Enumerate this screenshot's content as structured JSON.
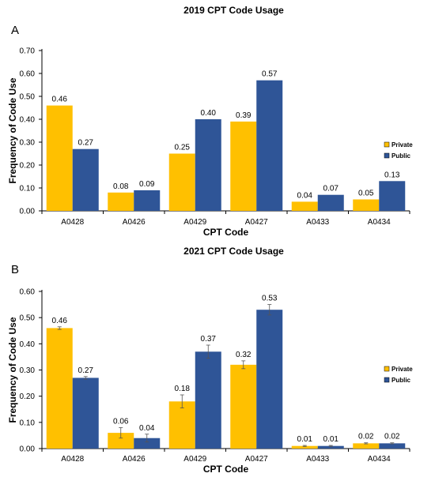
{
  "chart_data": [
    {
      "panel": "A",
      "type": "bar",
      "title": "2019 CPT Code Usage",
      "xlabel": "CPT Code",
      "ylabel": "Frequency of Code Use",
      "categories": [
        "A0428",
        "A0426",
        "A0429",
        "A0427",
        "A0433",
        "A0434"
      ],
      "series": [
        {
          "name": "Private",
          "color": "#FFC000",
          "values": [
            0.46,
            0.08,
            0.25,
            0.39,
            0.04,
            0.05
          ],
          "labels": [
            "0.46",
            "0.08",
            "0.25",
            "0.39",
            "0.04",
            "0.05"
          ]
        },
        {
          "name": "Public",
          "color": "#2F5597",
          "values": [
            0.27,
            0.09,
            0.4,
            0.57,
            0.07,
            0.13
          ],
          "labels": [
            "0.27",
            "0.09",
            "0.40",
            "0.57",
            "0.07",
            "0.13"
          ]
        }
      ],
      "ylim": [
        0,
        0.7
      ],
      "yticks": [
        "0.00",
        "0.10",
        "0.20",
        "0.30",
        "0.40",
        "0.50",
        "0.60",
        "0.70"
      ],
      "error_bars": false,
      "grid": false,
      "legend": "right"
    },
    {
      "panel": "B",
      "type": "bar",
      "title": "2021 CPT Code Usage",
      "xlabel": "CPT Code",
      "ylabel": "Frequency of Code Use",
      "categories": [
        "A0428",
        "A0426",
        "A0429",
        "A0427",
        "A0433",
        "A0434"
      ],
      "series": [
        {
          "name": "Private",
          "color": "#FFC000",
          "values": [
            0.46,
            0.06,
            0.18,
            0.32,
            0.01,
            0.02
          ],
          "errors": [
            0.005,
            0.02,
            0.025,
            0.015,
            0.002,
            0.002
          ],
          "labels": [
            "0.46",
            "0.06",
            "0.18",
            "0.32",
            "0.01",
            "0.02"
          ]
        },
        {
          "name": "Public",
          "color": "#2F5597",
          "values": [
            0.27,
            0.04,
            0.37,
            0.53,
            0.01,
            0.02
          ],
          "errors": [
            0.005,
            0.015,
            0.025,
            0.02,
            0.002,
            0.002
          ],
          "labels": [
            "0.27",
            "0.04",
            "0.37",
            "0.53",
            "0.01",
            "0.02"
          ]
        }
      ],
      "ylim": [
        0,
        0.6
      ],
      "yticks": [
        "0.00",
        "0.10",
        "0.20",
        "0.30",
        "0.40",
        "0.50",
        "0.60"
      ],
      "error_bars": true,
      "grid": false,
      "legend": "right"
    }
  ]
}
